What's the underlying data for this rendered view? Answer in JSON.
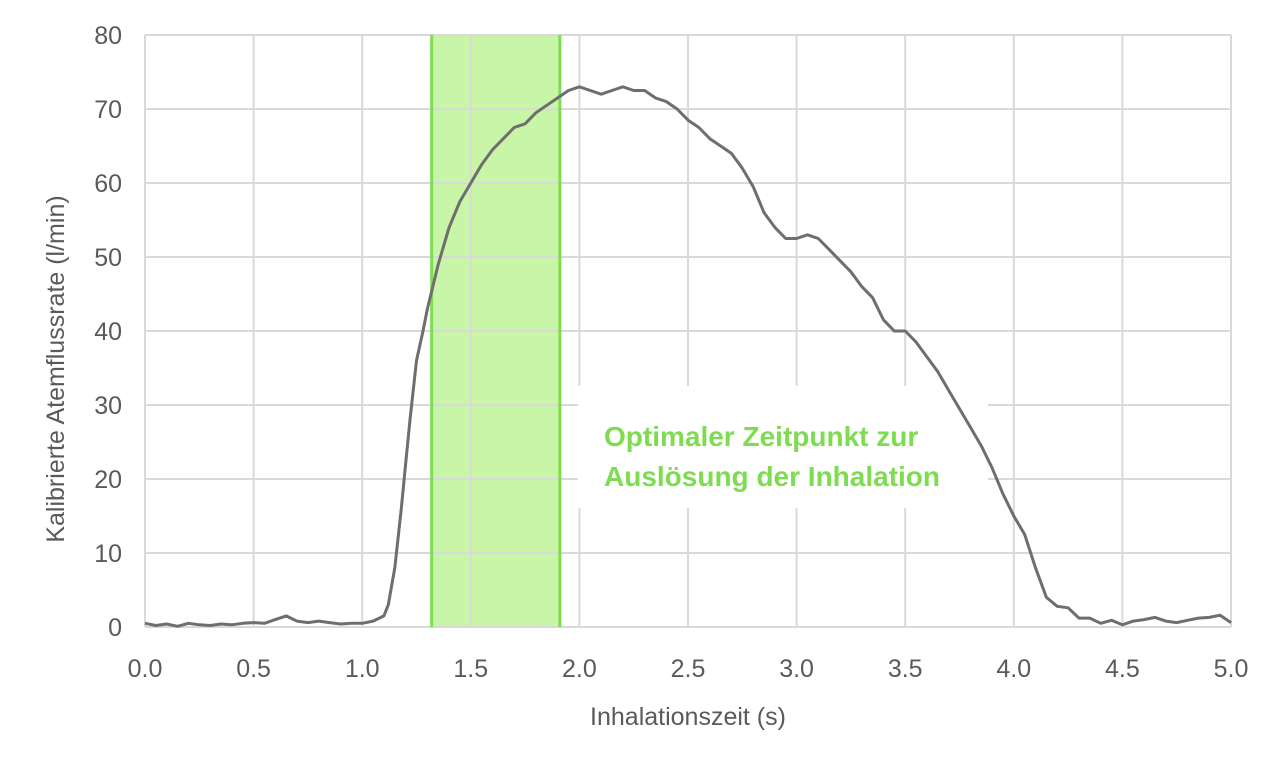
{
  "chart_data": {
    "type": "line",
    "xlabel": "Inhalationszeit (s)",
    "ylabel": "Kalibrierte Atemflussrate (l/min)",
    "xlim": [
      0,
      5
    ],
    "ylim": [
      0,
      80
    ],
    "x_ticks": [
      "0.0",
      "0.5",
      "1.0",
      "1.5",
      "2.0",
      "2.5",
      "3.0",
      "3.5",
      "4.0",
      "4.5",
      "5.0"
    ],
    "y_ticks": [
      "0",
      "10",
      "20",
      "30",
      "40",
      "50",
      "60",
      "70",
      "80"
    ],
    "grid": true,
    "line_color": "#6e6e6e",
    "highlight": {
      "x_start": 1.32,
      "x_end": 1.91,
      "fill_color": "#c9f5a8",
      "edge_color": "#7ddc4f"
    },
    "annotation": {
      "lines": [
        "Optimaler Zeitpunkt zur",
        "Auslösung der Inhalation"
      ],
      "color": "#7ddc4f"
    },
    "series": [
      {
        "x": [
          0.0,
          0.05,
          0.1,
          0.15,
          0.2,
          0.25,
          0.3,
          0.35,
          0.4,
          0.45,
          0.5,
          0.55,
          0.6,
          0.65,
          0.7,
          0.75,
          0.8,
          0.85,
          0.9,
          0.95,
          1.0,
          1.05,
          1.1,
          1.12,
          1.15,
          1.18,
          1.2,
          1.22,
          1.25,
          1.28,
          1.3,
          1.35,
          1.4,
          1.45,
          1.5,
          1.55,
          1.6,
          1.65,
          1.7,
          1.75,
          1.8,
          1.85,
          1.9,
          1.95,
          2.0,
          2.05,
          2.1,
          2.15,
          2.2,
          2.25,
          2.3,
          2.35,
          2.4,
          2.45,
          2.5,
          2.55,
          2.6,
          2.65,
          2.7,
          2.75,
          2.8,
          2.85,
          2.9,
          2.95,
          3.0,
          3.05,
          3.1,
          3.15,
          3.2,
          3.25,
          3.3,
          3.35,
          3.4,
          3.45,
          3.5,
          3.55,
          3.6,
          3.65,
          3.7,
          3.75,
          3.8,
          3.85,
          3.9,
          3.95,
          4.0,
          4.05,
          4.1,
          4.15,
          4.2,
          4.25,
          4.3,
          4.35,
          4.4,
          4.45,
          4.5,
          4.55,
          4.6,
          4.65,
          4.7,
          4.75,
          4.8,
          4.85,
          4.9,
          4.95,
          5.0
        ],
        "y": [
          0.5,
          0.2,
          0.4,
          0.1,
          0.5,
          0.3,
          0.2,
          0.4,
          0.3,
          0.5,
          0.6,
          0.5,
          1.0,
          1.5,
          0.8,
          0.6,
          0.8,
          0.6,
          0.4,
          0.5,
          0.5,
          0.8,
          1.5,
          3.0,
          8.0,
          16.0,
          22.0,
          28.0,
          36.0,
          40.0,
          43.0,
          49.0,
          54.0,
          57.5,
          60.0,
          62.5,
          64.5,
          66.0,
          67.5,
          68.0,
          69.5,
          70.5,
          71.5,
          72.5,
          73.0,
          72.5,
          72.0,
          72.5,
          73.0,
          72.5,
          72.5,
          71.5,
          71.0,
          70.0,
          68.5,
          67.5,
          66.0,
          65.0,
          64.0,
          62.0,
          59.5,
          56.0,
          54.0,
          52.5,
          52.5,
          53.0,
          52.5,
          51.0,
          49.5,
          48.0,
          46.0,
          44.5,
          41.5,
          40.0,
          40.0,
          38.5,
          36.5,
          34.5,
          32.0,
          29.5,
          27.0,
          24.5,
          21.5,
          18.0,
          15.0,
          12.5,
          8.0,
          4.0,
          2.8,
          2.6,
          1.2,
          1.2,
          0.5,
          0.9,
          0.3,
          0.8,
          1.0,
          1.3,
          0.8,
          0.6,
          0.9,
          1.2,
          1.3,
          1.6,
          0.6
        ]
      }
    ]
  }
}
